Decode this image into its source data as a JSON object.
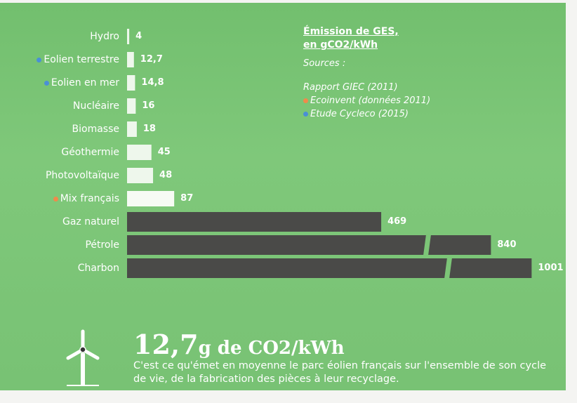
{
  "chart_data": {
    "type": "bar",
    "orientation": "horizontal",
    "title": "Émission de GES, en gCO2/kWh",
    "sources_label": "Sources :",
    "sources": [
      {
        "text": "Rapport GIEC (2011)",
        "color": null
      },
      {
        "text": "Ecoinvent (données 2011)",
        "color": "#f08a4b"
      },
      {
        "text": "Etude Cycleco (2015)",
        "color": "#4a8fd6"
      }
    ],
    "categories": [
      "Hydro",
      "Eolien terrestre",
      "Eolien en mer",
      "Nucléaire",
      "Biomasse",
      "Géothermie",
      "Photovoltaïque",
      "Mix français",
      "Gaz naturel",
      "Pétrole",
      "Charbon"
    ],
    "values": [
      4,
      12.7,
      14.8,
      16,
      18,
      45,
      48,
      87,
      469,
      840,
      1001
    ],
    "value_labels": [
      "4",
      "12,7",
      "14,8",
      "16",
      "18",
      "45",
      "48",
      "87",
      "469",
      "840",
      "1001"
    ],
    "bar_colors": [
      "#eef7ec",
      "#eef7ec",
      "#eef7ec",
      "#eef7ec",
      "#eef7ec",
      "#eef7ec",
      "#eef7ec",
      "#f6fbf4",
      "#4a4a48",
      "#4a4a48",
      "#4a4a48"
    ],
    "marker_colors": [
      null,
      "#4a8fd6",
      "#4a8fd6",
      null,
      null,
      null,
      null,
      "#f08a4b",
      null,
      null,
      null
    ],
    "axis_break": true,
    "headline": {
      "value": "12,7",
      "unit": "g de CO2/kWh"
    },
    "caption": "C'est ce qu'émet en moyenne le parc éolien français sur l'ensemble de son cycle de vie, de la fabrication des pièces à leur recyclage."
  }
}
